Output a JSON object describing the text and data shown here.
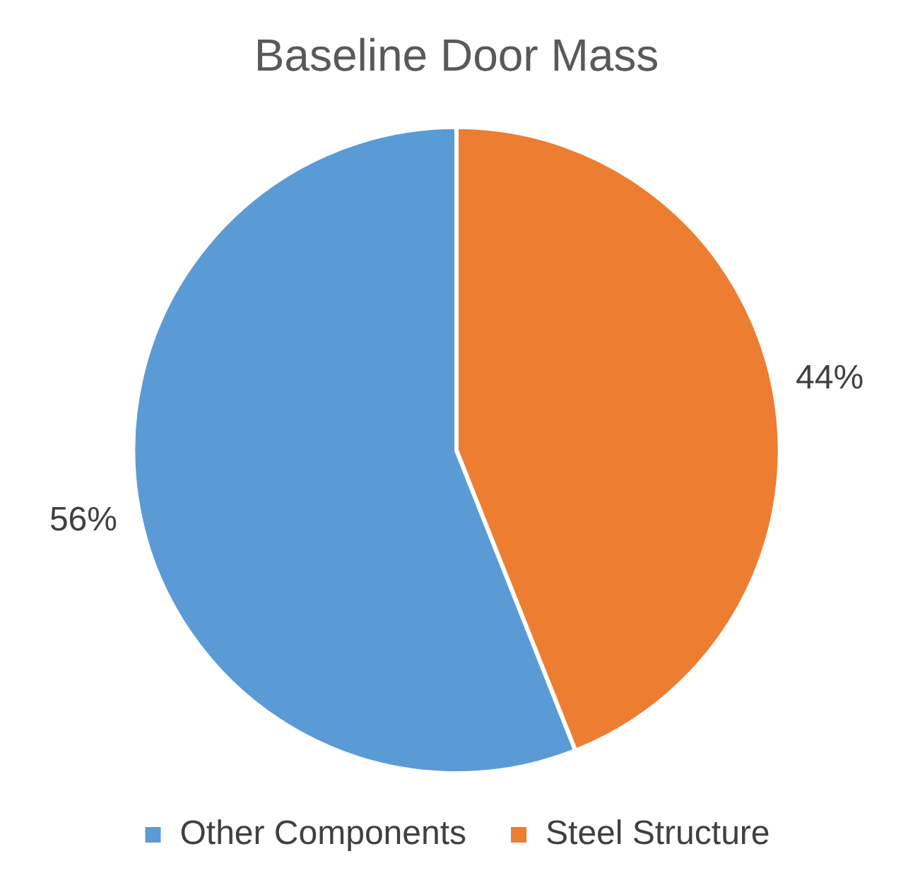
{
  "chart_data": {
    "type": "pie",
    "title": "Baseline Door Mass",
    "categories": [
      "Other Components",
      "Steel Structure"
    ],
    "values": [
      56,
      44
    ],
    "colors": [
      "#5b9bd5",
      "#ed7d31"
    ],
    "value_labels": [
      "56%",
      "44%"
    ],
    "legend": "bottom"
  }
}
